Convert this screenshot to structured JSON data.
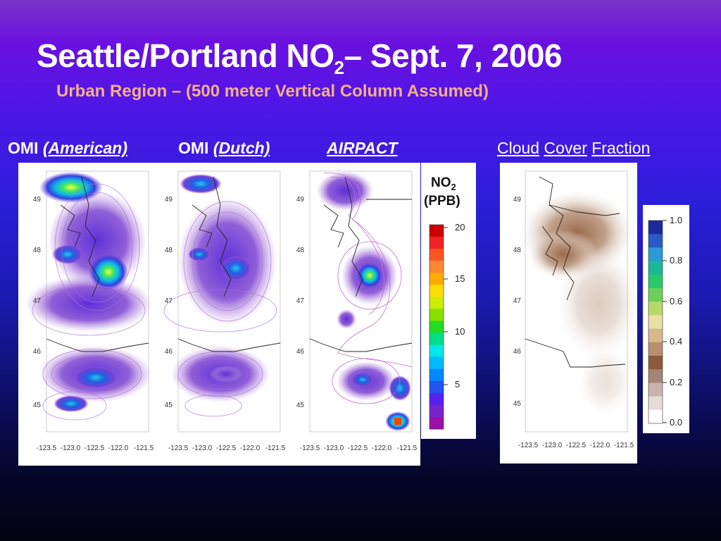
{
  "slide": {
    "title_main": "Seattle/Portland NO",
    "title_sub": "2",
    "title_tail": "– Sept. 7, 2006",
    "subtitle": "Urban Region – (500 meter Vertical Column Assumed)"
  },
  "labels": {
    "omi_american_prefix": "OMI",
    "omi_american_italic": "(American)",
    "omi_dutch_prefix": "OMI",
    "omi_dutch_italic": "(Dutch)",
    "airpact": "AIRPACT",
    "cloud": "Cloud",
    "cover": "Cover",
    "fraction": "Fraction"
  },
  "maps": {
    "lat_ticks": [
      "49",
      "48",
      "47",
      "46",
      "45"
    ],
    "lon_ticks": [
      "-123.5",
      "-123.0",
      "-122.5",
      "-122.0",
      "-121.5"
    ]
  },
  "no2_colorbar": {
    "title_line1": "NO",
    "title_sub": "2",
    "title_line2": "(PPB)",
    "ticks": [
      "20",
      "15",
      "10",
      "5"
    ],
    "colors": [
      "#cc0000",
      "#ee2222",
      "#ff5522",
      "#ff8833",
      "#ffaa00",
      "#ffdd00",
      "#ccee00",
      "#88e000",
      "#22dd22",
      "#00dd88",
      "#00e8e8",
      "#00bbff",
      "#0088ff",
      "#2255ee",
      "#5522ee",
      "#7722cc",
      "#9911aa"
    ]
  },
  "cloud_colorbar": {
    "ticks": [
      "1.0",
      "0.8",
      "0.6",
      "0.4",
      "0.2",
      "0.0"
    ],
    "colors": [
      "#1a2a9a",
      "#2a5ac8",
      "#2a9ad8",
      "#1ab898",
      "#2ac86a",
      "#6ad25a",
      "#b8d86a",
      "#e8e0a8",
      "#d8b888",
      "#b89070",
      "#8a5a3a",
      "#a48474",
      "#c8b4ac",
      "#e8dcd8",
      "#ffffff"
    ]
  }
}
